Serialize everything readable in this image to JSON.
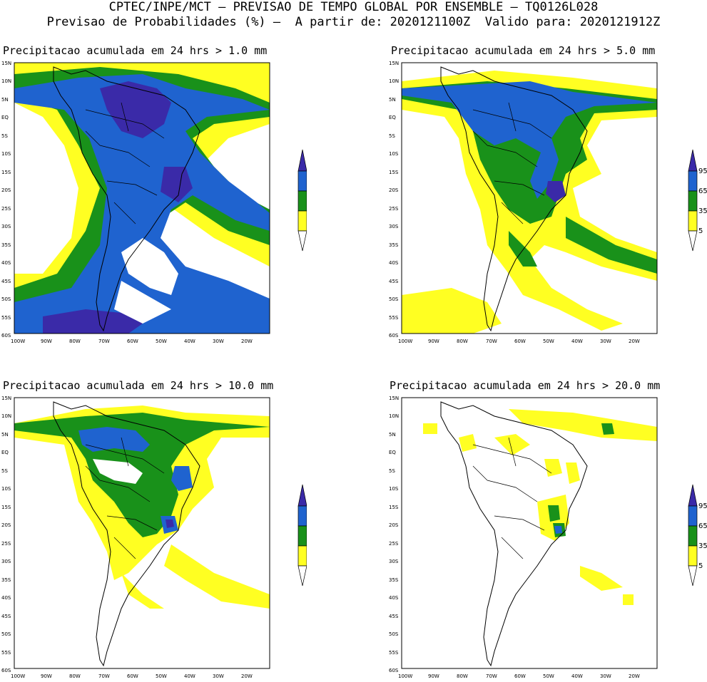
{
  "header": {
    "line1": "CPTEC/INPE/MCT – PREVISAO DE TEMPO GLOBAL POR ENSEMBLE – TQ0126L028",
    "line2": "Previsao de Probabilidades (%) –  A partir de: 2020121100Z  Valido para: 2020121912Z"
  },
  "panels": [
    {
      "title": "Precipitacao acumulada em 24 hrs > 1.0 mm"
    },
    {
      "title": "Precipitacao acumulada em 24 hrs > 5.0 mm"
    },
    {
      "title": "Precipitacao acumulada em 24 hrs > 10.0 mm"
    },
    {
      "title": "Precipitacao acumulada em 24 hrs > 20.0 mm"
    }
  ],
  "lat_labels": [
    "15N",
    "10N",
    "5N",
    "EQ",
    "5S",
    "10S",
    "15S",
    "20S",
    "25S",
    "30S",
    "35S",
    "40S",
    "45S",
    "50S",
    "55S",
    "60S"
  ],
  "lon_labels": [
    "100W",
    "90W",
    "80W",
    "70W",
    "60W",
    "50W",
    "40W",
    "30W",
    "20W"
  ],
  "legend": {
    "labels": [
      "95",
      "65",
      "35",
      "5"
    ],
    "colors": {
      "c95": "#3a2aa8",
      "c65": "#1f63cf",
      "c35": "#19911a",
      "c5": "#ffff22"
    }
  },
  "colors": {
    "land": "#000000"
  }
}
